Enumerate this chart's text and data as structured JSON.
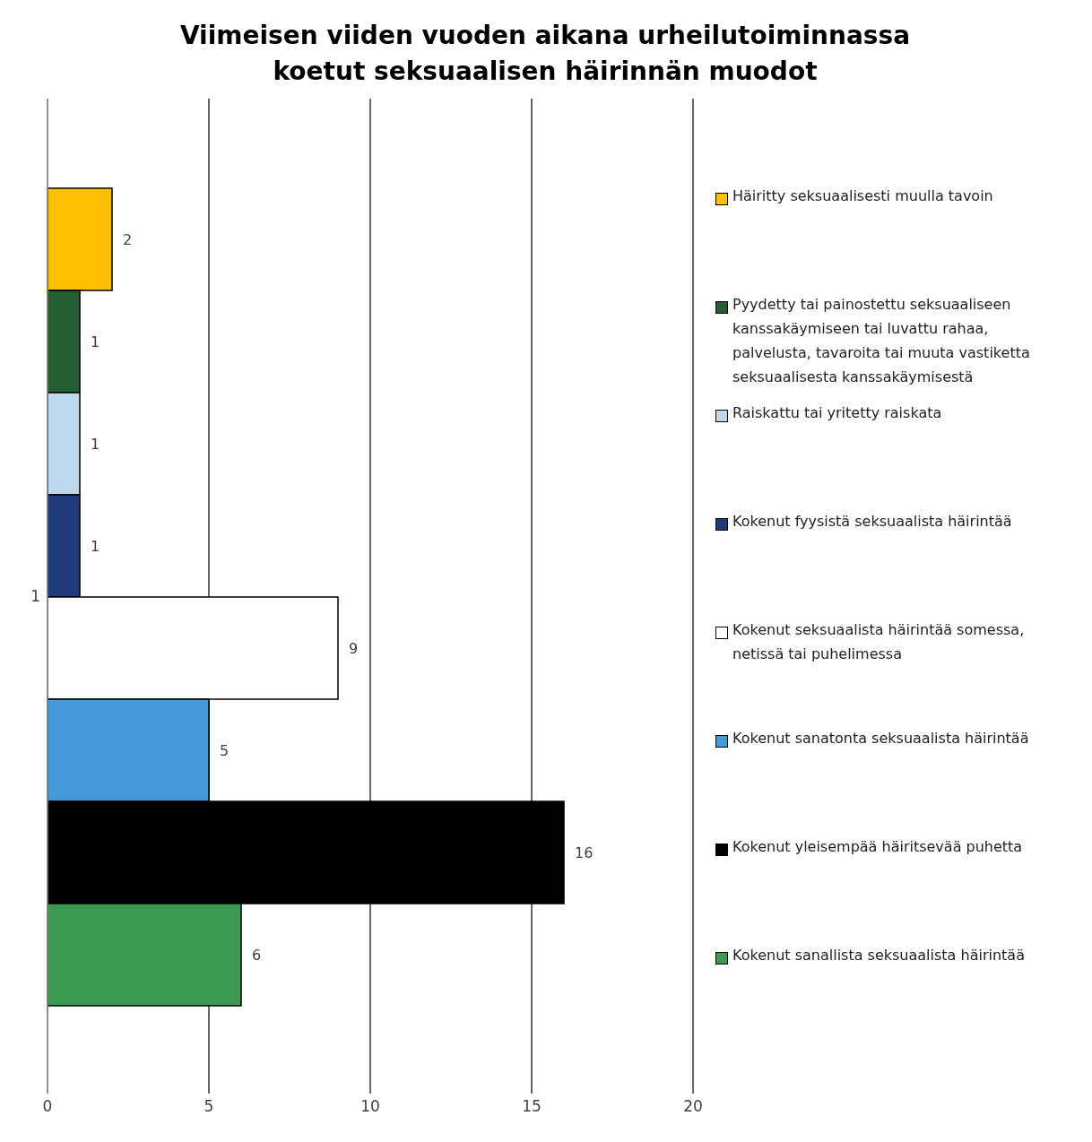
{
  "chart_data": {
    "type": "bar",
    "orientation": "horizontal",
    "title": "Viimeisen viiden vuoden aikana urheilutoiminnassa koetut seksuaalisen häirinnän muodot",
    "categories": [
      "1"
    ],
    "series": [
      {
        "name": "Häiritty seksuaalisesti muulla tavoin",
        "color": "#ffc000",
        "values": [
          2
        ]
      },
      {
        "name": "Pyydetty tai painostettu seksuaaliseen kanssakäymiseen tai luvattu rahaa, palvelusta, tavaroita tai muuta vastiketta seksuaalisesta kanssakäymisestä",
        "color": "#255e32",
        "values": [
          1
        ]
      },
      {
        "name": "Raiskattu tai yritetty raiskata",
        "color": "#bdd7ee",
        "values": [
          1
        ]
      },
      {
        "name": "Kokenut fyysistä seksuaalista häirintää",
        "color": "#1f3a7a",
        "values": [
          1
        ]
      },
      {
        "name": "Kokenut seksuaalista häirintää somessa, netissä tai puhelimessa",
        "color": "#ffffff",
        "values": [
          9
        ]
      },
      {
        "name": "Kokenut sanatonta seksuaalista häirintää",
        "color": "#4499d9",
        "values": [
          5
        ]
      },
      {
        "name": "Kokenut yleisempää häiritsevää puhetta",
        "color": "#000000",
        "values": [
          16
        ]
      },
      {
        "name": "Kokenut sanallista seksuaalista häirintää",
        "color": "#3d9a53",
        "values": [
          6
        ]
      }
    ],
    "xlim": [
      0,
      20
    ],
    "xticks": [
      0,
      5,
      10,
      15,
      20
    ],
    "grid": "x",
    "legend": "right",
    "data_labels": true
  }
}
